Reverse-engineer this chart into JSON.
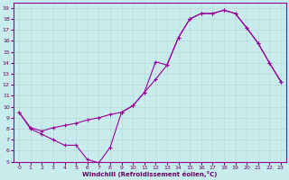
{
  "xlabel": "Windchill (Refroidissement éolien,°C)",
  "bg_color": "#c8ecec",
  "line_color": "#990099",
  "grid_color": "#b8d8d8",
  "tick_label_color": "#660066",
  "axis_label_color": "#660066",
  "xlim": [
    -0.5,
    23.5
  ],
  "ylim": [
    5,
    19.5
  ],
  "xticks": [
    0,
    1,
    2,
    3,
    4,
    5,
    6,
    7,
    8,
    9,
    10,
    11,
    12,
    13,
    14,
    15,
    16,
    17,
    18,
    19,
    20,
    21,
    22,
    23
  ],
  "yticks": [
    5,
    6,
    7,
    8,
    9,
    10,
    11,
    12,
    13,
    14,
    15,
    16,
    17,
    18,
    19
  ],
  "line1": [
    [
      0,
      9.5
    ],
    [
      1,
      8.0
    ],
    [
      2,
      7.5
    ],
    [
      3,
      7.0
    ],
    [
      4,
      6.5
    ],
    [
      5,
      6.5
    ],
    [
      6,
      5.2
    ],
    [
      7,
      4.9
    ],
    [
      8,
      6.3
    ],
    [
      9,
      9.5
    ],
    [
      10,
      10.1
    ],
    [
      11,
      11.3
    ],
    [
      12,
      14.1
    ],
    [
      13,
      13.8
    ],
    [
      14,
      16.3
    ],
    [
      15,
      18.0
    ],
    [
      16,
      18.5
    ],
    [
      17,
      18.5
    ],
    [
      18,
      18.8
    ],
    [
      19,
      18.5
    ],
    [
      20,
      17.2
    ],
    [
      21,
      15.8
    ],
    [
      22,
      14.0
    ],
    [
      23,
      12.3
    ]
  ],
  "line2": [
    [
      0,
      9.5
    ],
    [
      1,
      8.1
    ],
    [
      2,
      7.8
    ],
    [
      3,
      8.1
    ],
    [
      4,
      8.3
    ],
    [
      5,
      8.5
    ],
    [
      6,
      8.8
    ],
    [
      7,
      9.0
    ],
    [
      8,
      9.3
    ],
    [
      9,
      9.5
    ],
    [
      10,
      10.1
    ],
    [
      11,
      11.3
    ],
    [
      12,
      12.5
    ],
    [
      13,
      13.8
    ],
    [
      14,
      16.3
    ],
    [
      15,
      18.0
    ],
    [
      16,
      18.5
    ],
    [
      17,
      18.5
    ],
    [
      18,
      18.8
    ],
    [
      19,
      18.5
    ],
    [
      20,
      17.2
    ],
    [
      21,
      15.8
    ],
    [
      22,
      14.0
    ],
    [
      23,
      12.3
    ]
  ]
}
